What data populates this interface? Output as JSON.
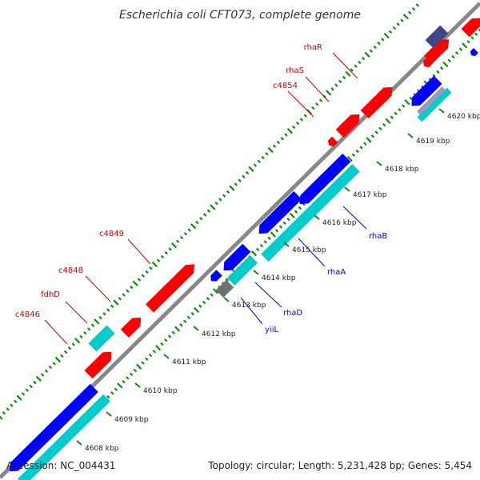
{
  "title": "Escherichia coli CFT073, complete genome",
  "footer": {
    "accession": "Accession: NC_004431",
    "summary": "Topology: circular; Length: 5,231,428 bp; Genes: 5,454"
  },
  "colors": {
    "forward_cds": "#ff0000",
    "reverse_cds": "#0000ff",
    "reverse_rna": "#00cccc",
    "other_feature": "#444488",
    "gray_feature": "#707070",
    "backbone": "#888888",
    "gc_ticks": "#118811",
    "forward_label": "#cc0000",
    "reverse_label": "#0000cc"
  },
  "ticks": [
    "4608 kbp",
    "4609 kbp",
    "4610 kbp",
    "4611 kbp",
    "4612 kbp",
    "4613 kbp",
    "4614 kbp",
    "4615 kbp",
    "4616 kbp",
    "4617 kbp",
    "4618 kbp",
    "4619 kbp",
    "4620 kbp"
  ],
  "forward_labels": [
    "rhaR",
    "rhaS",
    "c4854",
    "c4849",
    "c4848",
    "fdhD",
    "c4846"
  ],
  "reverse_labels": [
    "rhaB",
    "rhaA",
    "rhaD",
    "yiiL"
  ]
}
